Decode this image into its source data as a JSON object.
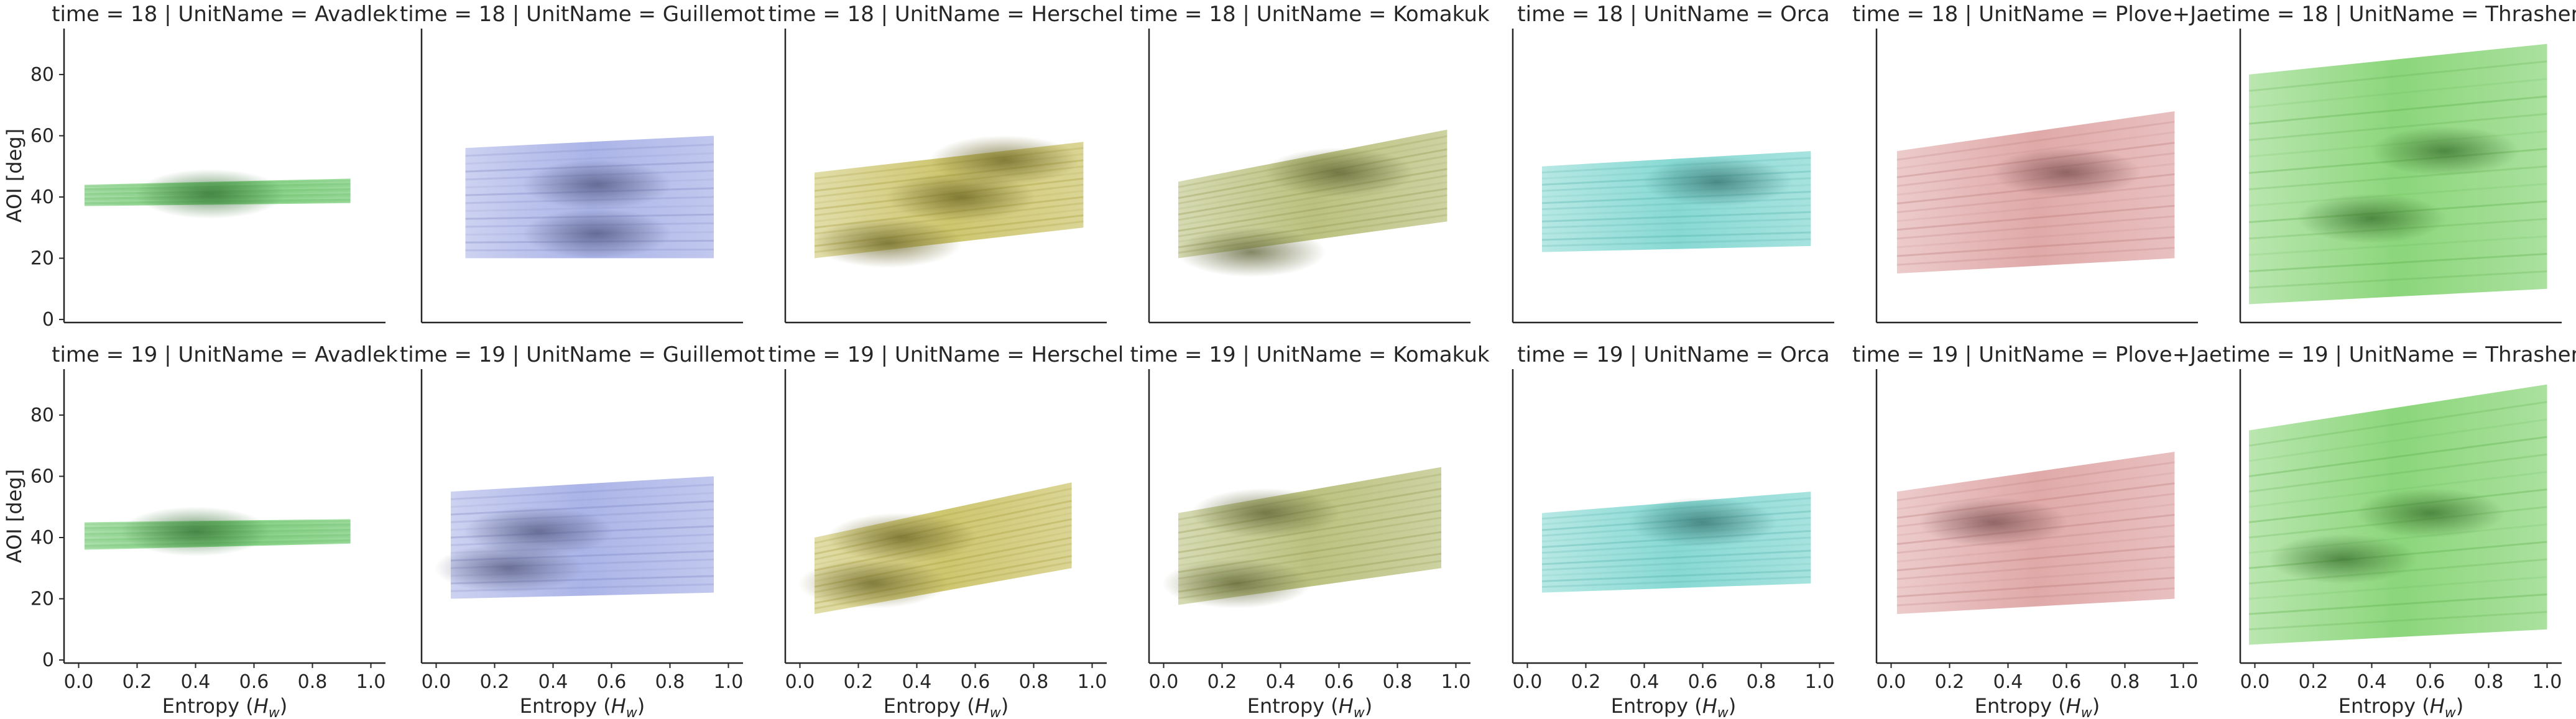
{
  "figure": {
    "row_titles_prefix": "time",
    "col_titles_prefix": "UnitName",
    "xlabel": "Entropy (",
    "xlabel_sym": "H",
    "xlabel_sub": "w",
    "xlabel_close": ")",
    "ylabel": "AOI [deg]"
  },
  "chart_data": {
    "type": "heatmap",
    "kind": "facet grid of 2D histograms",
    "rows": [
      "18",
      "19"
    ],
    "cols": [
      "Avadlek",
      "Guillemot",
      "Herschel",
      "Komakuk",
      "Orca",
      "Plove+Jae",
      "Thrasher"
    ],
    "xlabel": "Entropy (Hw)",
    "ylabel": "AOI [deg]",
    "xlim": [
      -0.05,
      1.05
    ],
    "ylim": [
      -1,
      95
    ],
    "xticks": [
      0.0,
      0.2,
      0.4,
      0.6,
      0.8,
      1.0
    ],
    "yticks": [
      0,
      20,
      40,
      60,
      80
    ],
    "grid": false,
    "colors": {
      "Avadlek": "#5fc85f",
      "Guillemot": "#8f9be0",
      "Herschel": "#bdb33f",
      "Komakuk": "#a4ad55",
      "Orca": "#5fccc4",
      "Plove+Jae": "#d68c8c",
      "Thrasher": "#65c84f"
    },
    "panels": [
      {
        "time": "18",
        "unit": "Avadlek",
        "x_range": [
          0.02,
          0.93
        ],
        "y_range_left": [
          37,
          44
        ],
        "y_range_right": [
          38,
          46
        ],
        "density_peaks": [
          [
            0.45,
            41
          ]
        ]
      },
      {
        "time": "18",
        "unit": "Guillemot",
        "x_range": [
          0.1,
          0.95
        ],
        "y_range_left": [
          20,
          56
        ],
        "y_range_right": [
          20,
          60
        ],
        "density_peaks": [
          [
            0.55,
            28
          ],
          [
            0.55,
            44
          ]
        ]
      },
      {
        "time": "18",
        "unit": "Herschel",
        "x_range": [
          0.05,
          0.97
        ],
        "y_range_left": [
          20,
          48
        ],
        "y_range_right": [
          30,
          58
        ],
        "density_peaks": [
          [
            0.3,
            25
          ],
          [
            0.55,
            40
          ],
          [
            0.7,
            52
          ]
        ]
      },
      {
        "time": "18",
        "unit": "Komakuk",
        "x_range": [
          0.05,
          0.97
        ],
        "y_range_left": [
          20,
          45
        ],
        "y_range_right": [
          32,
          62
        ],
        "density_peaks": [
          [
            0.3,
            22
          ],
          [
            0.6,
            48
          ]
        ]
      },
      {
        "time": "18",
        "unit": "Orca",
        "x_range": [
          0.05,
          0.97
        ],
        "y_range_left": [
          22,
          50
        ],
        "y_range_right": [
          24,
          55
        ],
        "density_peaks": [
          [
            0.65,
            45
          ]
        ]
      },
      {
        "time": "18",
        "unit": "Plove+Jae",
        "x_range": [
          0.02,
          0.97
        ],
        "y_range_left": [
          15,
          55
        ],
        "y_range_right": [
          20,
          68
        ],
        "density_peaks": [
          [
            0.6,
            48
          ]
        ]
      },
      {
        "time": "18",
        "unit": "Thrasher",
        "x_range": [
          -0.02,
          1.0
        ],
        "y_range_left": [
          5,
          80
        ],
        "y_range_right": [
          10,
          90
        ],
        "density_peaks": [
          [
            0.4,
            33
          ],
          [
            0.65,
            55
          ]
        ]
      },
      {
        "time": "19",
        "unit": "Avadlek",
        "x_range": [
          0.02,
          0.93
        ],
        "y_range_left": [
          36,
          45
        ],
        "y_range_right": [
          38,
          46
        ],
        "density_peaks": [
          [
            0.4,
            42
          ]
        ]
      },
      {
        "time": "19",
        "unit": "Guillemot",
        "x_range": [
          0.05,
          0.95
        ],
        "y_range_left": [
          20,
          55
        ],
        "y_range_right": [
          22,
          60
        ],
        "density_peaks": [
          [
            0.25,
            30
          ],
          [
            0.35,
            42
          ]
        ]
      },
      {
        "time": "19",
        "unit": "Herschel",
        "x_range": [
          0.05,
          0.93
        ],
        "y_range_left": [
          15,
          40
        ],
        "y_range_right": [
          30,
          58
        ],
        "density_peaks": [
          [
            0.25,
            25
          ],
          [
            0.35,
            40
          ]
        ]
      },
      {
        "time": "19",
        "unit": "Komakuk",
        "x_range": [
          0.05,
          0.95
        ],
        "y_range_left": [
          18,
          48
        ],
        "y_range_right": [
          30,
          63
        ],
        "density_peaks": [
          [
            0.25,
            25
          ],
          [
            0.35,
            48
          ]
        ]
      },
      {
        "time": "19",
        "unit": "Orca",
        "x_range": [
          0.05,
          0.97
        ],
        "y_range_left": [
          22,
          48
        ],
        "y_range_right": [
          25,
          55
        ],
        "density_peaks": [
          [
            0.6,
            45
          ]
        ]
      },
      {
        "time": "19",
        "unit": "Plove+Jae",
        "x_range": [
          0.02,
          0.97
        ],
        "y_range_left": [
          15,
          55
        ],
        "y_range_right": [
          20,
          68
        ],
        "density_peaks": [
          [
            0.35,
            45
          ]
        ]
      },
      {
        "time": "19",
        "unit": "Thrasher",
        "x_range": [
          -0.02,
          1.0
        ],
        "y_range_left": [
          5,
          75
        ],
        "y_range_right": [
          10,
          90
        ],
        "density_peaks": [
          [
            0.3,
            33
          ],
          [
            0.6,
            48
          ]
        ]
      }
    ]
  }
}
